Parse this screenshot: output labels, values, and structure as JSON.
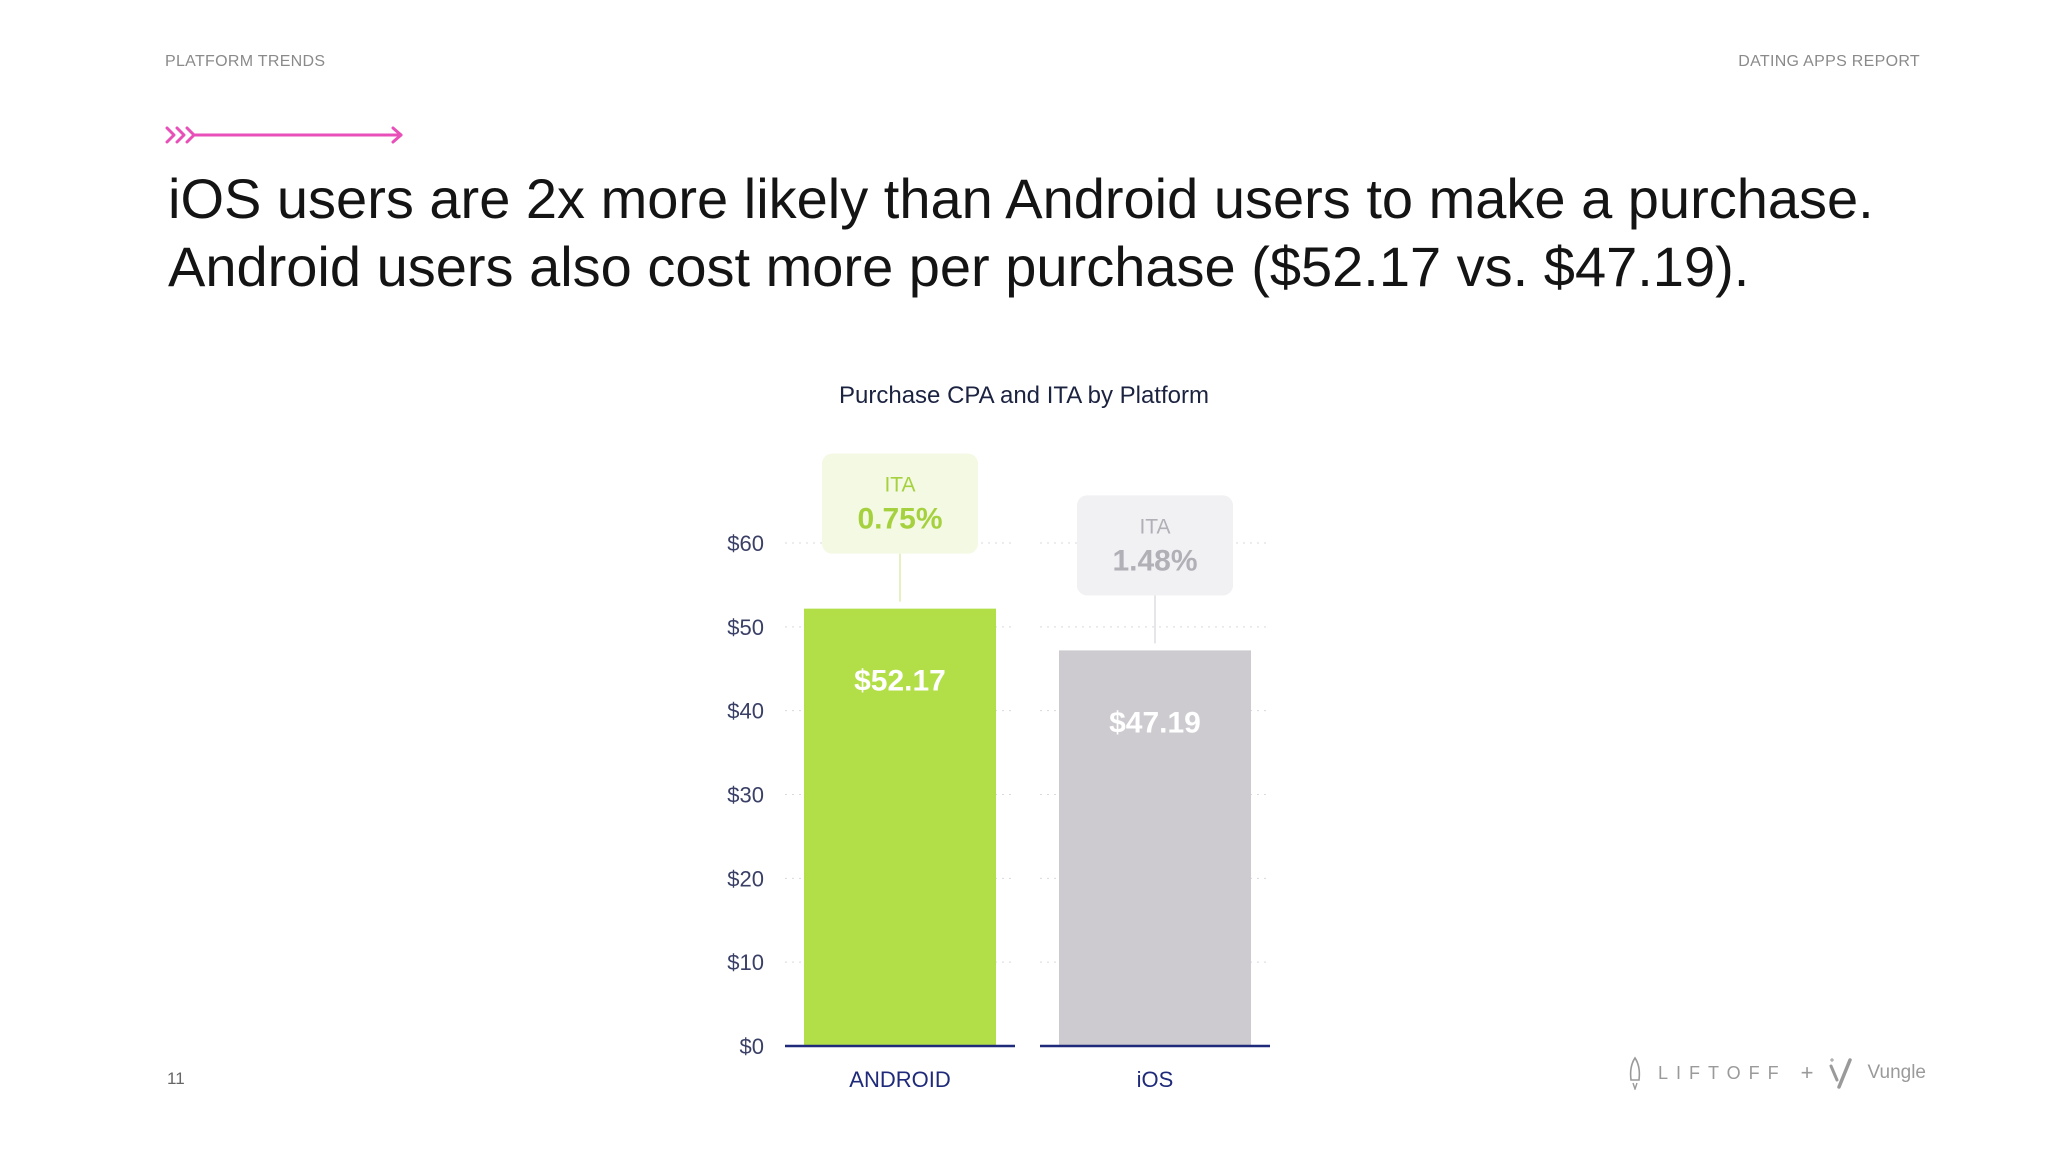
{
  "header": {
    "left_label": "PLATFORM TRENDS",
    "right_label": "DATING APPS REPORT"
  },
  "headline": {
    "line1": "iOS users are 2x more likely than Android users to make a purchase.",
    "line2": "Android users also cost more per purchase ($52.17 vs. $47.19)."
  },
  "footer": {
    "page_number": "11",
    "logo_brand_a": "LIFTOFF",
    "logo_plus": "+",
    "logo_brand_b": "Vungle"
  },
  "colors": {
    "accent_pink": "#e84fb8",
    "android_bar": "#b2de48",
    "ios_bar": "#cdcbcf",
    "axis_line": "#1f2a7a",
    "ita_android_text": "#a6d13f",
    "ita_ios_text": "#b0b0b6"
  },
  "chart_data": {
    "type": "bar",
    "title": "Purchase CPA and ITA by Platform",
    "categories": [
      "ANDROID",
      "iOS"
    ],
    "values": [
      52.17,
      47.19
    ],
    "value_labels": [
      "$52.17",
      "$47.19"
    ],
    "ita": {
      "label": "ITA",
      "values": [
        "0.75%",
        "1.48%"
      ]
    },
    "ylim": [
      0,
      60
    ],
    "yticks": [
      "$0",
      "$10",
      "$20",
      "$30",
      "$40",
      "$50",
      "$60"
    ],
    "grid": true,
    "xlabel": "",
    "ylabel": ""
  }
}
